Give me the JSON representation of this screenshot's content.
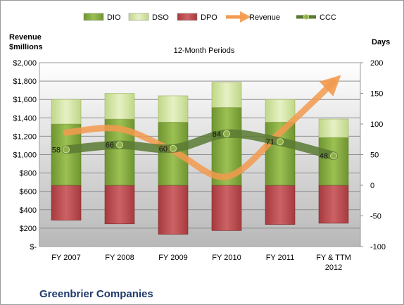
{
  "chart_data": {
    "type": "bar",
    "title": "12-Month Periods",
    "company": "Greenbrier Companies",
    "ylabel_left": "Revenue\n$millions",
    "ylabel_right": "Days",
    "categories": [
      "FY 2007",
      "FY 2008",
      "FY 2009",
      "FY 2010",
      "FY 2011",
      "FY & TTM 2012"
    ],
    "y_left": {
      "min": 0,
      "max": 2000,
      "step": 200,
      "ticks": [
        "$-",
        "$200",
        "$400",
        "$600",
        "$800",
        "$1,000",
        "$1,200",
        "$1,400",
        "$1,600",
        "$1,800",
        "$2,000"
      ]
    },
    "y_right": {
      "min": -100,
      "max": 200,
      "step": 50,
      "ticks": [
        "-100",
        "-50",
        "0",
        "50",
        "100",
        "150",
        "200"
      ]
    },
    "legend": [
      "DIO",
      "DSO",
      "DPO",
      "Revenue",
      "CCC"
    ],
    "legend_position": "top",
    "series": [
      {
        "name": "DIO",
        "axis": "right",
        "values": [
          100,
          108,
          103,
          127,
          103,
          78
        ]
      },
      {
        "name": "DSO",
        "axis": "right",
        "values": [
          40,
          42,
          43,
          41,
          37,
          30
        ]
      },
      {
        "name": "DPO",
        "axis": "right",
        "values": [
          -57,
          -63,
          -80,
          -74,
          -64,
          -62
        ]
      },
      {
        "name": "Revenue",
        "axis": "left",
        "values": [
          1240,
          1280,
          1040,
          760,
          1240,
          1790
        ]
      },
      {
        "name": "CCC",
        "axis": "right",
        "values": [
          58,
          66,
          60,
          84,
          71,
          48
        ],
        "labels": [
          "58",
          "66",
          "60",
          "84",
          "71",
          "48"
        ]
      }
    ],
    "colors": {
      "DIO": "#7fa33b",
      "DSO": "#cfe19a",
      "DPO": "#b9474a",
      "Revenue": "#f39a4e",
      "CCC": "#5a7a33"
    },
    "grid": true
  }
}
